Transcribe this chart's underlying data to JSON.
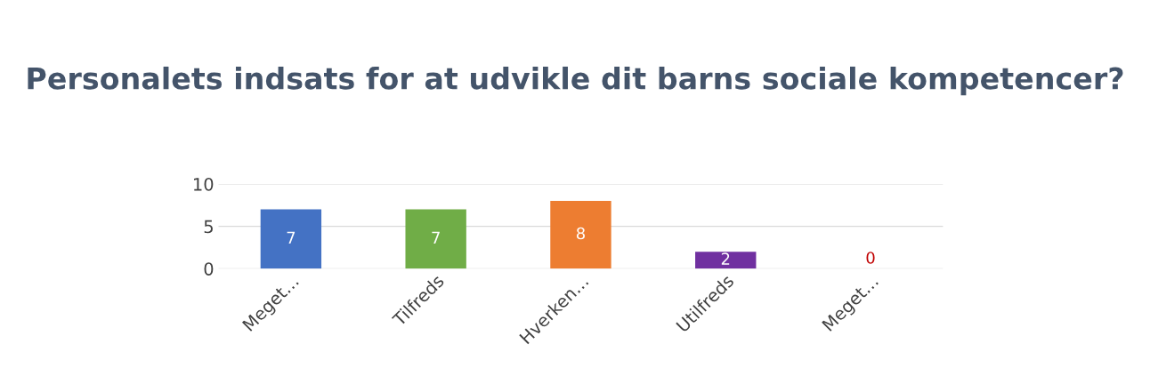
{
  "chart_data": {
    "type": "bar",
    "title": "Personalets indsats for at udvikle dit barns sociale kompetencer?",
    "categories": [
      "Meget…",
      "Tilfreds",
      "Hverken…",
      "Utilfreds",
      "Meget…"
    ],
    "values": [
      7,
      7,
      8,
      2,
      0
    ],
    "colors": [
      "#4472c4",
      "#70ad47",
      "#ed7d31",
      "#7030a0",
      "#c00000"
    ],
    "ylim": [
      0,
      10
    ],
    "yticks": [
      0,
      5,
      10
    ],
    "grid": "y",
    "data_labels": true
  }
}
